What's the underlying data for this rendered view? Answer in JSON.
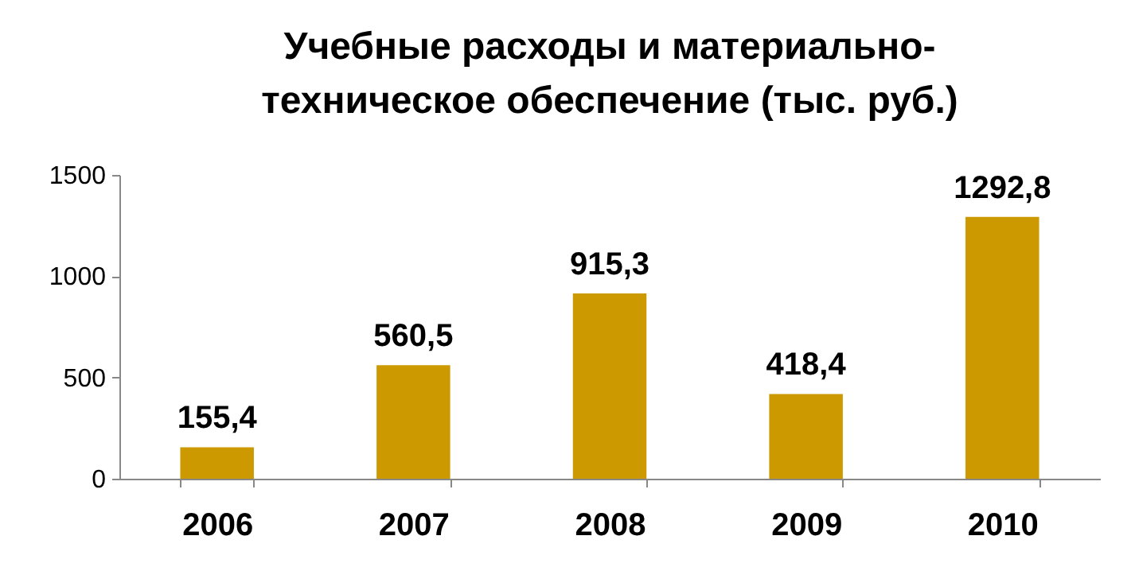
{
  "chart_data": {
    "type": "bar",
    "title": "Учебные расходы и материально-техническое обеспечение (тыс. руб.)",
    "categories": [
      "2006",
      "2007",
      "2008",
      "2009",
      "2010"
    ],
    "values": [
      155.4,
      560.5,
      915.3,
      418.4,
      1292.8
    ],
    "value_labels": [
      "155,4",
      "560,5",
      "915,3",
      "418,4",
      "1292,8"
    ],
    "color": "#cc9900",
    "ylim": [
      0,
      1500
    ],
    "yticks": [
      0,
      500,
      1000,
      1500
    ],
    "grid": false
  }
}
